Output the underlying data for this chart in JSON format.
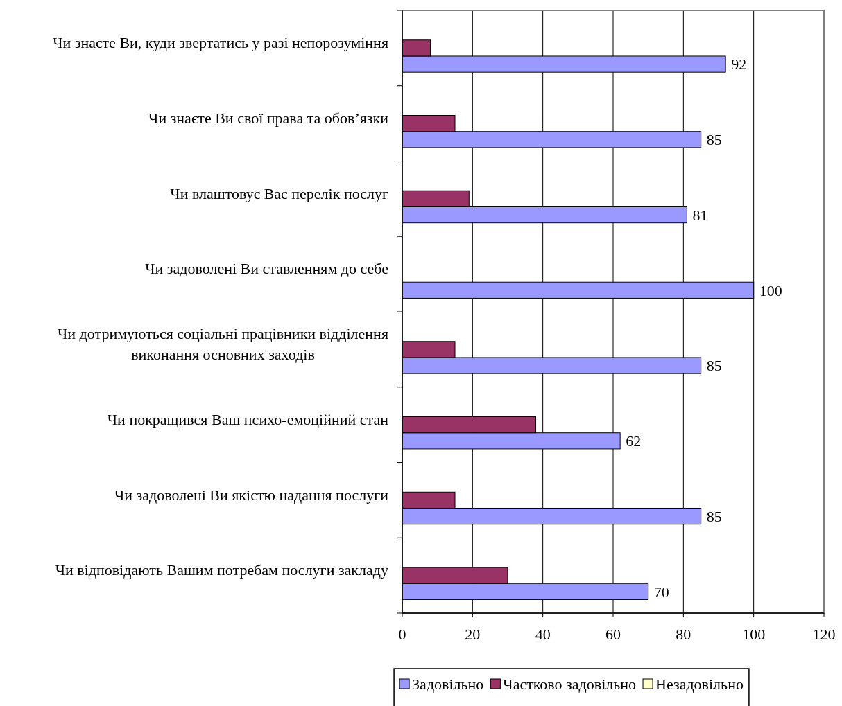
{
  "chart_data": {
    "type": "bar",
    "orientation": "horizontal",
    "categories": [
      "Чи знаєте Ви, куди звертатись у разі непорозуміння",
      "Чи знаєте Ви свої права та обов’язки",
      "Чи влаштовує Вас перелік послуг",
      "Чи задоволені Ви ставленням до себе",
      "Чи дотримуються соціальні працівники відділення виконання основних заходів",
      "Чи покращився Ваш психо-емоційний стан",
      "Чи задоволені Ви якістю надання послуги",
      "Чи відповідають Вашим потребам послуги закладу"
    ],
    "series": [
      {
        "name": "Задовільно",
        "color": "#9999ff",
        "values": [
          92,
          85,
          81,
          100,
          85,
          62,
          85,
          70
        ],
        "value_labels": [
          "92",
          "85",
          "81",
          "100",
          "85",
          "62",
          "85",
          "70"
        ]
      },
      {
        "name": "Частково задовільно",
        "color": "#993366",
        "values": [
          8,
          15,
          19,
          0,
          15,
          38,
          15,
          30
        ]
      },
      {
        "name": "Незадовільно",
        "color": "#ffffcc",
        "values": [
          0,
          0,
          0,
          0,
          0,
          0,
          0,
          0
        ]
      }
    ],
    "xlim": [
      0,
      120
    ],
    "xticks": [
      0,
      20,
      40,
      60,
      80,
      100,
      120
    ],
    "grid": "x",
    "legend": "bottom"
  }
}
